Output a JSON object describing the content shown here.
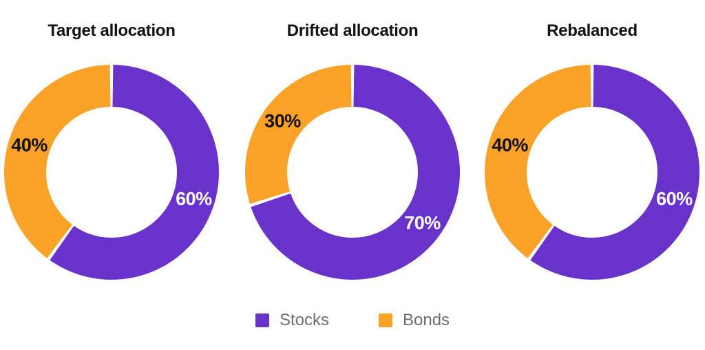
{
  "page": {
    "background": "#FFFFFF"
  },
  "colors": {
    "stocks": "#6832CB",
    "bonds": "#F9A227",
    "title_text": "#121212",
    "legend_text": "#6E6E6E",
    "slice_gap": "#FFFFFF"
  },
  "chart_data": [
    {
      "type": "pie",
      "donut": true,
      "inner_radius_ratio": 0.61,
      "start_angle_deg": 0,
      "direction": "clockwise",
      "title": "Target allocation",
      "slices": [
        {
          "label": "Stocks",
          "value": 60,
          "value_label": "60%",
          "color": "#6832CB",
          "value_label_color": "#FFFFFF"
        },
        {
          "label": "Bonds",
          "value": 40,
          "value_label": "40%",
          "color": "#F9A227",
          "value_label_color": "#111111"
        }
      ]
    },
    {
      "type": "pie",
      "donut": true,
      "inner_radius_ratio": 0.61,
      "start_angle_deg": 0,
      "direction": "clockwise",
      "title": "Drifted allocation",
      "slices": [
        {
          "label": "Stocks",
          "value": 70,
          "value_label": "70%",
          "color": "#6832CB",
          "value_label_color": "#FFFFFF"
        },
        {
          "label": "Bonds",
          "value": 30,
          "value_label": "30%",
          "color": "#F9A227",
          "value_label_color": "#111111"
        }
      ]
    },
    {
      "type": "pie",
      "donut": true,
      "inner_radius_ratio": 0.61,
      "start_angle_deg": 0,
      "direction": "clockwise",
      "title": "Rebalanced",
      "slices": [
        {
          "label": "Stocks",
          "value": 60,
          "value_label": "60%",
          "color": "#6832CB",
          "value_label_color": "#FFFFFF"
        },
        {
          "label": "Bonds",
          "value": 40,
          "value_label": "40%",
          "color": "#F9A227",
          "value_label_color": "#111111"
        }
      ]
    }
  ],
  "legend": {
    "items": [
      {
        "label": "Stocks",
        "color": "#6832CB"
      },
      {
        "label": "Bonds",
        "color": "#F9A227"
      }
    ]
  }
}
